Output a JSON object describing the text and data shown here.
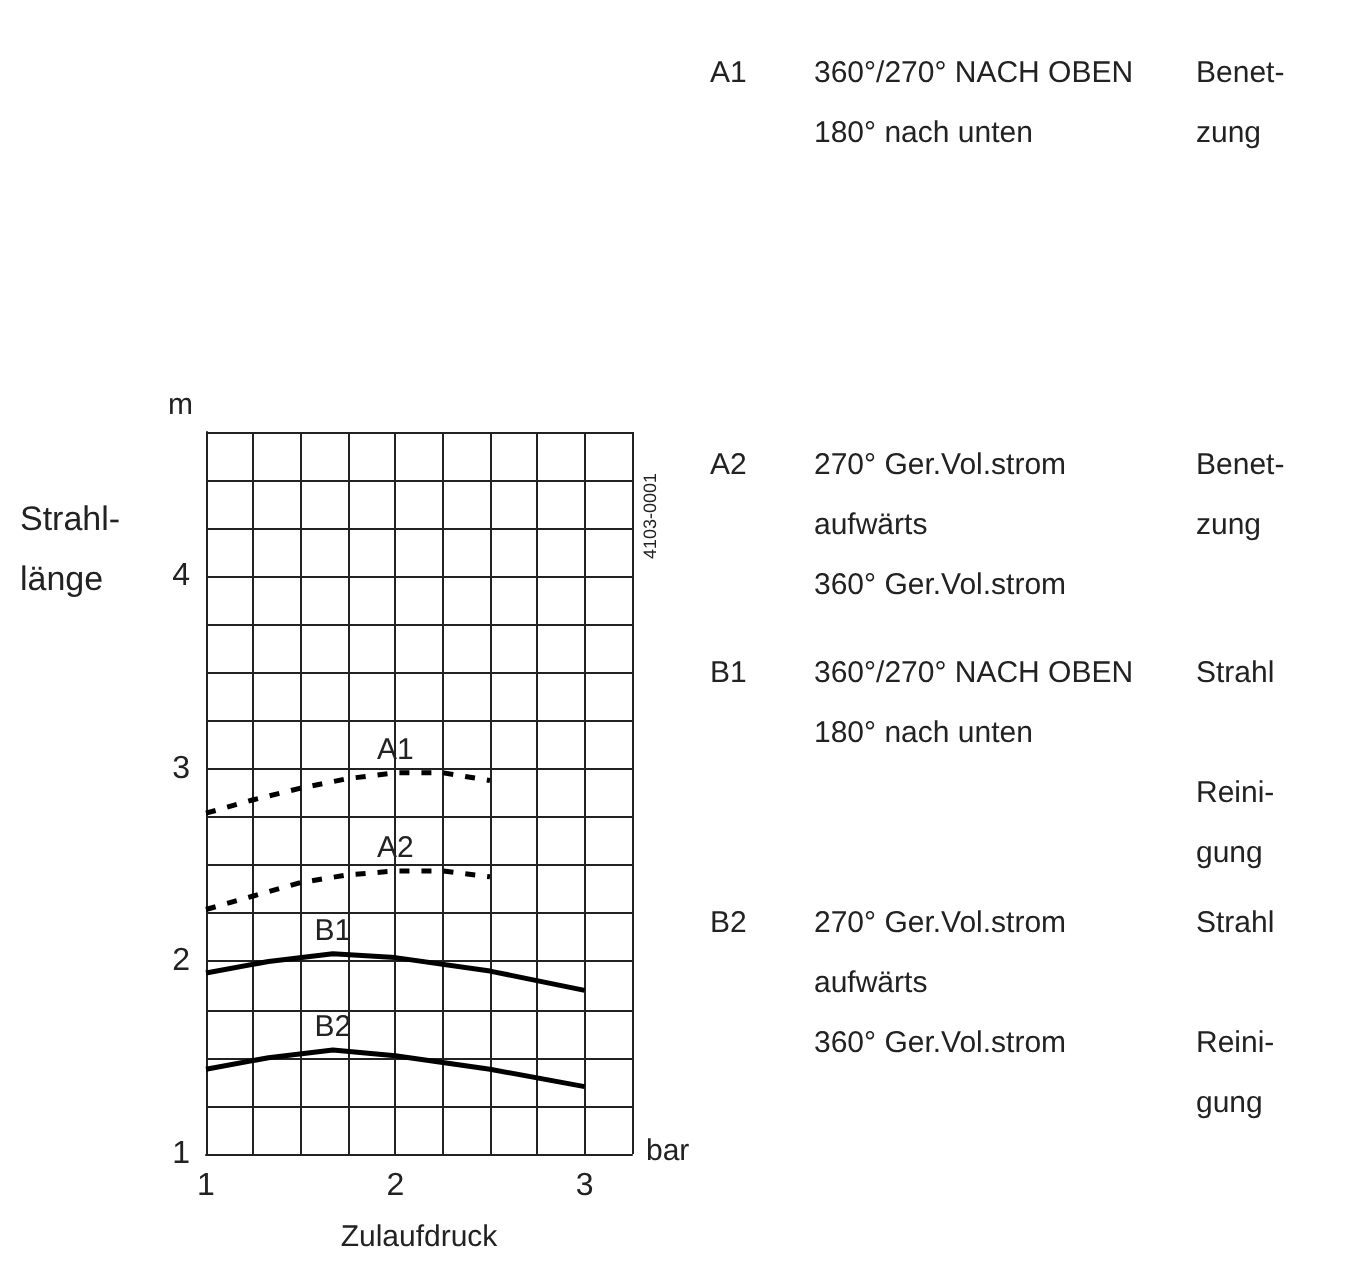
{
  "chart_data": {
    "type": "line",
    "xlabel": "Zulaufdruck",
    "ylabel": "Strahl-\nlänge",
    "xlim": [
      1,
      3.25
    ],
    "ylim": [
      1,
      4.75
    ],
    "xticks": [
      1,
      {
        "value": 1.25,
        "label": null
      },
      {
        "value": 1.5,
        "label": null
      },
      {
        "value": 1.75,
        "label": null
      },
      2,
      {
        "value": 2.25,
        "label": null
      },
      {
        "value": 2.5,
        "label": null
      },
      {
        "value": 2.75,
        "label": null
      },
      3,
      {
        "value": 3.25,
        "label": null
      }
    ],
    "yticks": [
      1,
      {
        "value": 1.25,
        "label": null
      },
      {
        "value": 1.5,
        "label": null
      },
      {
        "value": 1.75,
        "label": null
      },
      2,
      {
        "value": 2.25,
        "label": null
      },
      {
        "value": 2.5,
        "label": null
      },
      {
        "value": 2.75,
        "label": null
      },
      3,
      {
        "value": 3.25,
        "label": null
      },
      {
        "value": 3.5,
        "label": null
      },
      {
        "value": 3.75,
        "label": null
      },
      4,
      {
        "value": 4.25,
        "label": null
      },
      {
        "value": 4.5,
        "label": null
      },
      {
        "value": 4.75,
        "label": null
      }
    ],
    "grid": true,
    "legend": false,
    "marker": "none",
    "series": [
      {
        "name": "A1",
        "color": "#000000",
        "line_style": "dashed",
        "x": [
          1,
          1.25,
          1.5,
          1.75,
          2,
          2.25,
          2.5
        ],
        "values": [
          2.77,
          2.84,
          2.9,
          2.95,
          2.98,
          2.98,
          2.94
        ]
      },
      {
        "name": "A2",
        "color": "#000000",
        "line_style": "dashed",
        "x": [
          1,
          1.25,
          1.5,
          1.75,
          2,
          2.25,
          2.5
        ],
        "values": [
          2.27,
          2.34,
          2.41,
          2.45,
          2.47,
          2.47,
          2.44
        ]
      },
      {
        "name": "B1",
        "color": "#000000",
        "line_style": "solid",
        "x": [
          1,
          1.33,
          1.67,
          2,
          2.5,
          3
        ],
        "values": [
          1.94,
          2.0,
          2.04,
          2.02,
          1.95,
          1.85
        ]
      },
      {
        "name": "B2",
        "color": "#000000",
        "line_style": "solid",
        "x": [
          1,
          1.33,
          1.67,
          2,
          2.5,
          3
        ],
        "values": [
          1.44,
          1.5,
          1.54,
          1.51,
          1.44,
          1.35
        ]
      }
    ],
    "annotations": [
      "m",
      "bar",
      "4103-0001",
      "A1",
      "360°/270° NACH OBEN\n180° nach unten",
      "Benet-\nzung",
      "A2",
      "270° Ger.Vol.strom aufwärts\n360° Ger.Vol.strom",
      "Benet-\nzung",
      "B1",
      "360°/270° NACH OBEN\n180° nach unten",
      "Strahl\n\nReini-\ngung",
      "B2",
      "270° Ger.Vol.strom aufwärts\n360° Ger.Vol.strom",
      "Strahl\n\nReini-\ngung"
    ]
  }
}
